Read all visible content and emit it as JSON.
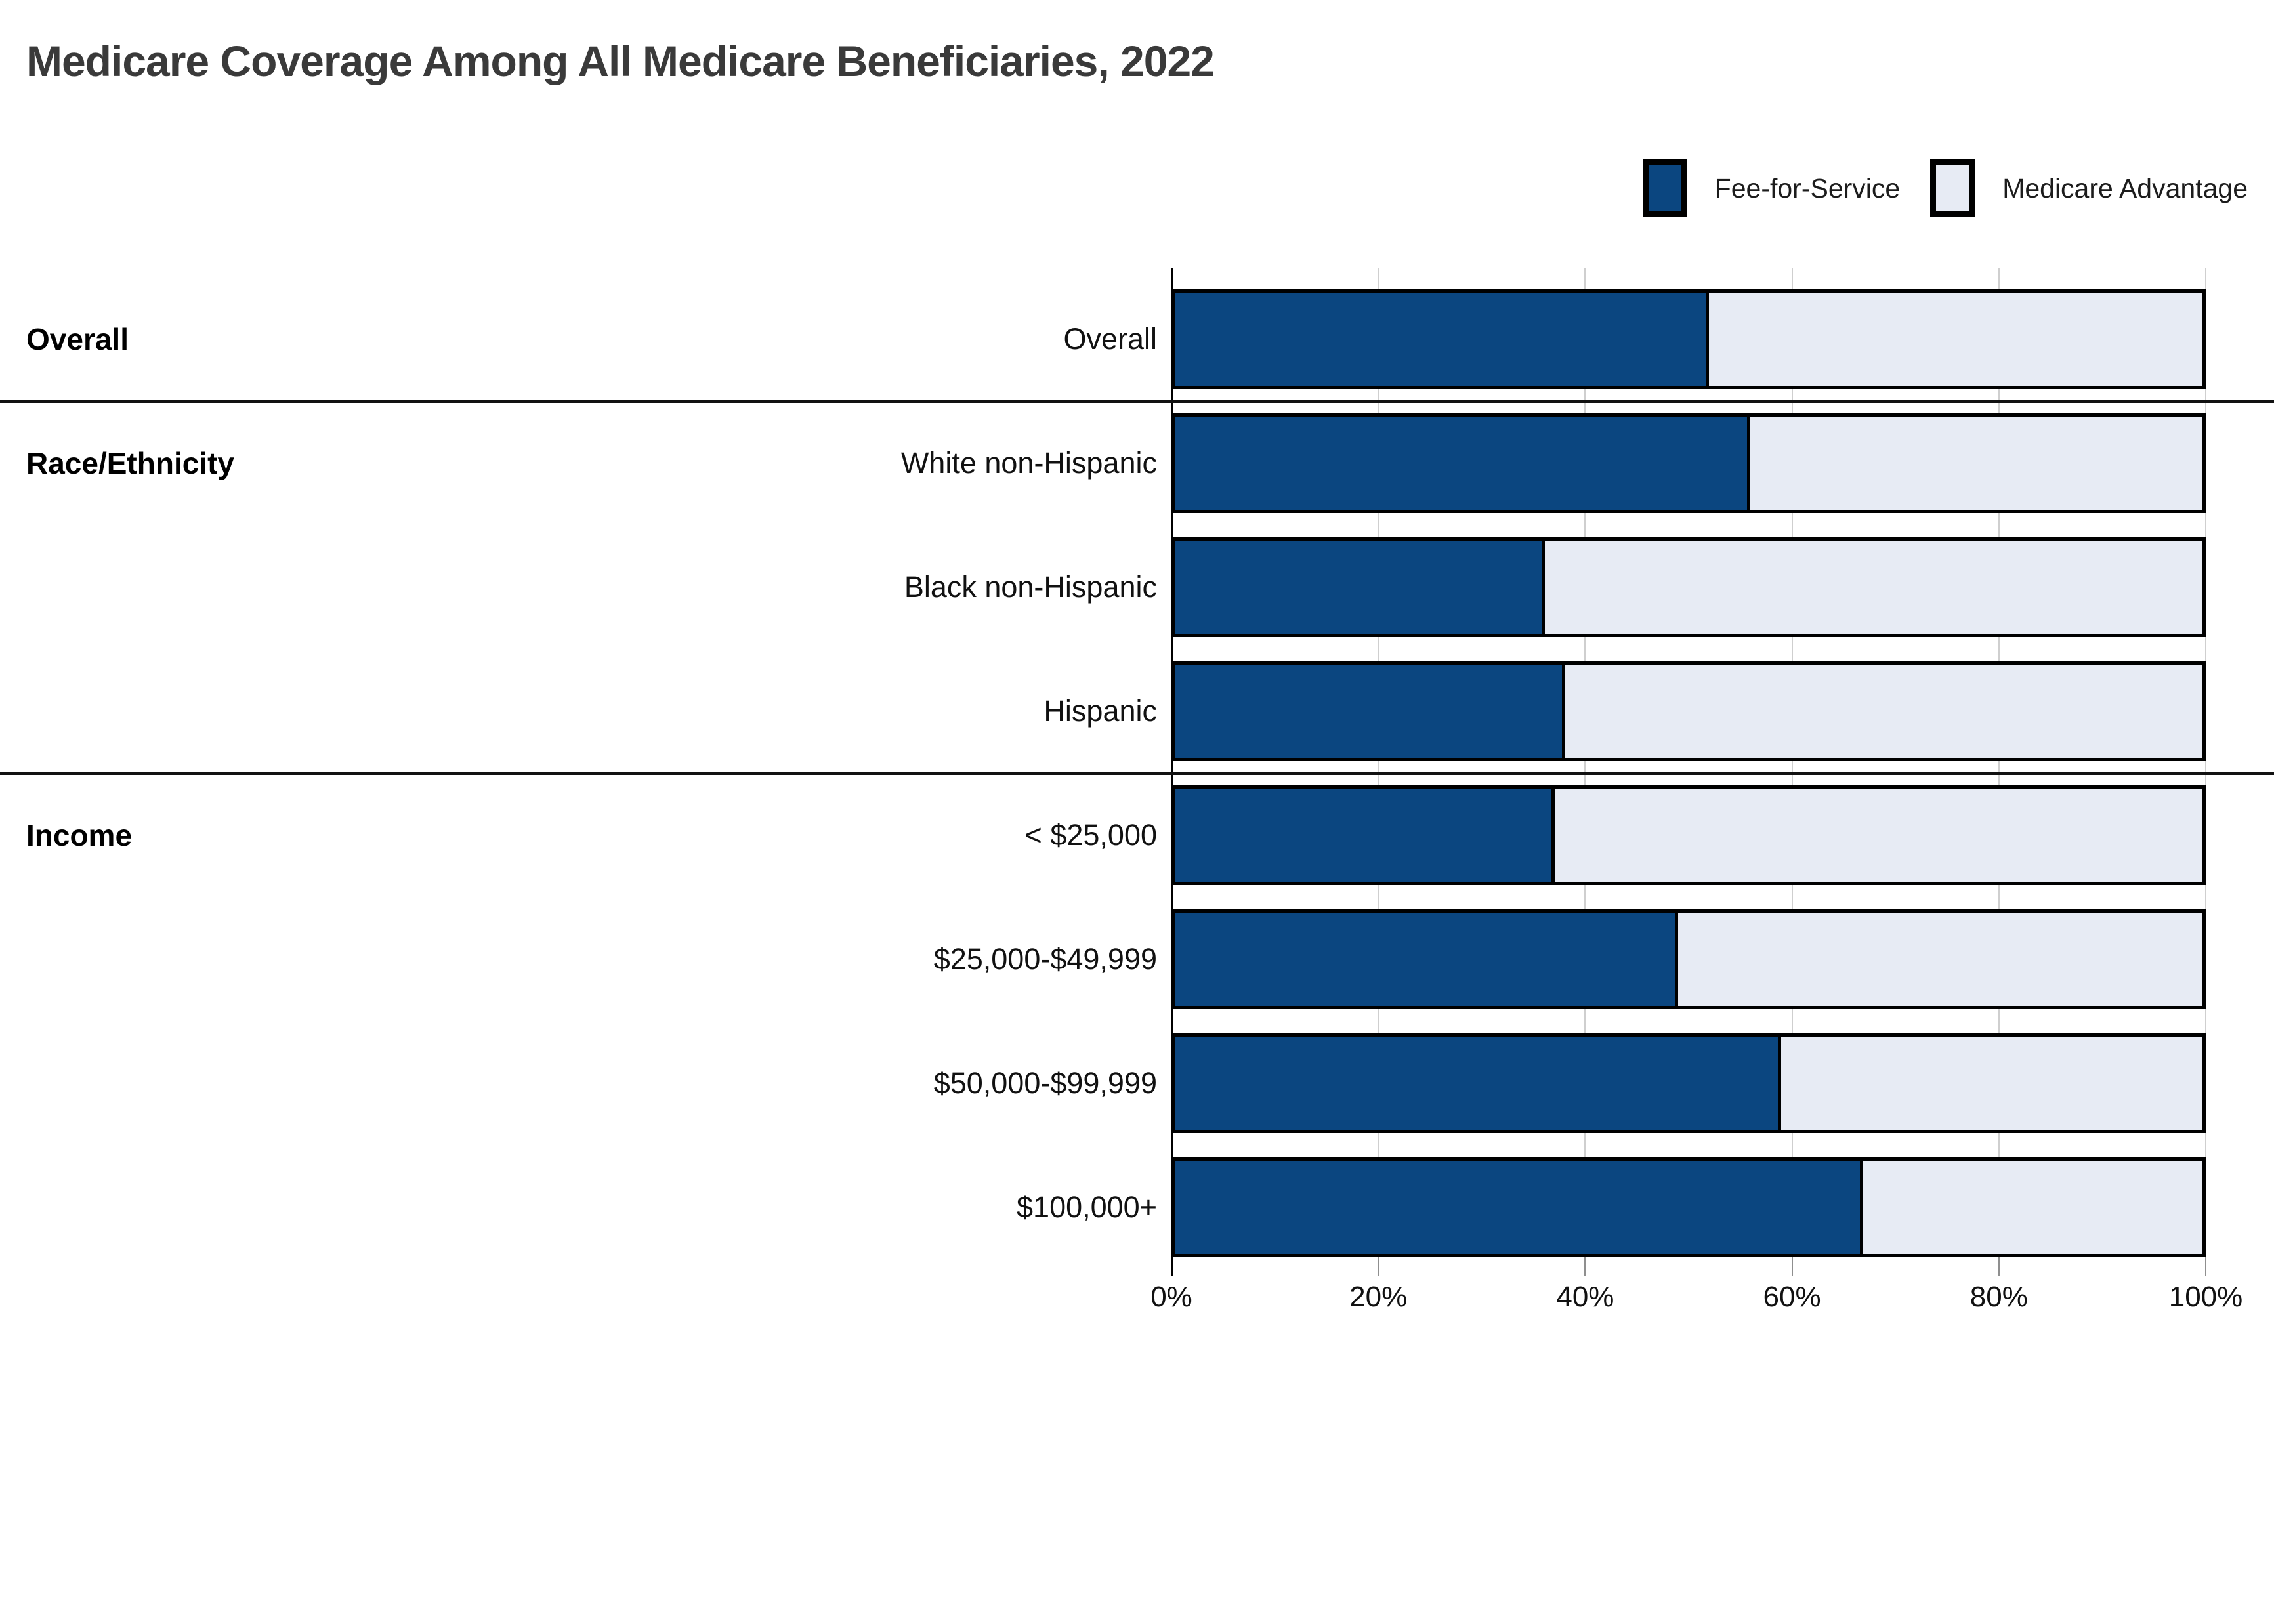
{
  "chart_data": {
    "type": "bar",
    "orientation": "horizontal",
    "stacked": true,
    "title": "Medicare Coverage Among All Medicare Beneficiaries, 2022",
    "categories": [
      "Overall",
      "White non-Hispanic",
      "Black non-Hispanic",
      "Hispanic",
      "< $25,000",
      "$25,000-$49,999",
      "$50,000-$99,999",
      "$100,000+"
    ],
    "series": [
      {
        "name": "Fee-for-Service",
        "values": [
          52,
          56,
          36,
          38,
          37,
          49,
          59,
          67
        ]
      },
      {
        "name": "Medicare Advantage",
        "values": [
          48,
          44,
          64,
          62,
          63,
          51,
          41,
          33
        ]
      }
    ],
    "groups": [
      {
        "label": "Overall",
        "first_row": 0
      },
      {
        "label": "Race/Ethnicity",
        "first_row": 1
      },
      {
        "label": "Income",
        "first_row": 4
      }
    ],
    "x_ticks": [
      "0%",
      "20%",
      "40%",
      "60%",
      "80%",
      "100%"
    ],
    "xlim": [
      0,
      100
    ],
    "grid": true,
    "legend_position": "top-right",
    "colors": {
      "fee_for_service": "#0B4680",
      "medicare_advantage": "#E7EBF4",
      "bar_border": "#000000",
      "gridline": "#CFCFCF",
      "title_text": "#3A3A3A"
    }
  }
}
